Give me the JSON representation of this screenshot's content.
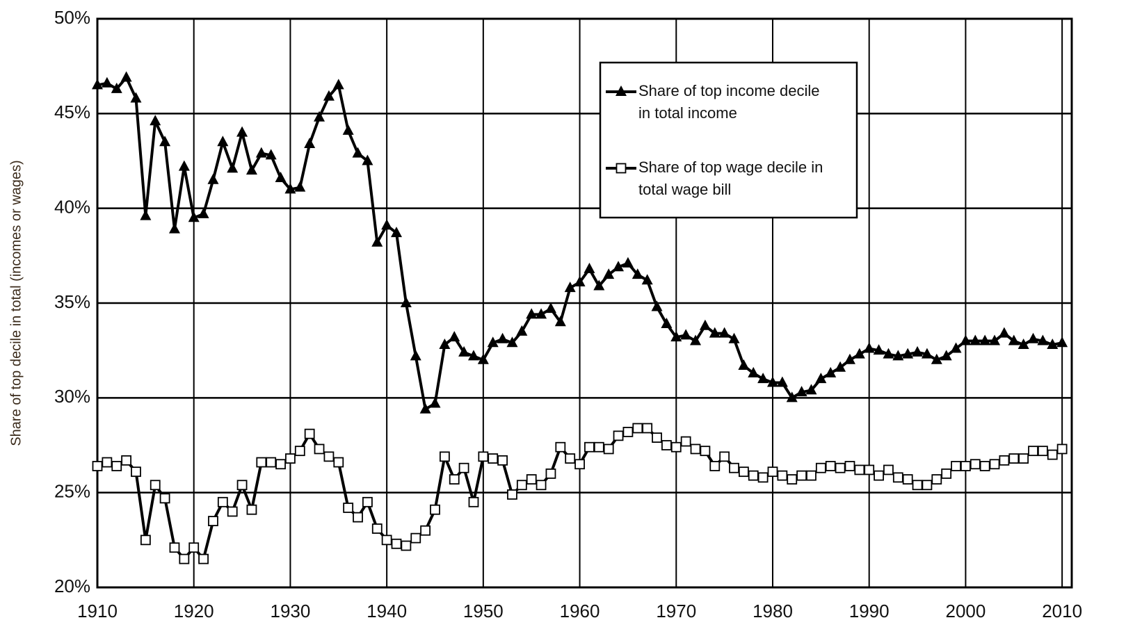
{
  "chart_data": {
    "type": "line",
    "y_label": "Share of top decile in total (incomes or wages)",
    "x": [
      1910,
      1911,
      1912,
      1913,
      1914,
      1915,
      1916,
      1917,
      1918,
      1919,
      1920,
      1921,
      1922,
      1923,
      1924,
      1925,
      1926,
      1927,
      1928,
      1929,
      1930,
      1931,
      1932,
      1933,
      1934,
      1935,
      1936,
      1937,
      1938,
      1939,
      1940,
      1941,
      1942,
      1943,
      1944,
      1945,
      1946,
      1947,
      1948,
      1949,
      1950,
      1951,
      1952,
      1953,
      1954,
      1955,
      1956,
      1957,
      1958,
      1959,
      1960,
      1961,
      1962,
      1963,
      1964,
      1965,
      1966,
      1967,
      1968,
      1969,
      1970,
      1971,
      1972,
      1973,
      1974,
      1975,
      1976,
      1977,
      1978,
      1979,
      1980,
      1981,
      1982,
      1983,
      1984,
      1985,
      1986,
      1987,
      1988,
      1989,
      1990,
      1991,
      1992,
      1993,
      1994,
      1995,
      1996,
      1997,
      1998,
      1999,
      2000,
      2001,
      2002,
      2003,
      2004,
      2005,
      2006,
      2007,
      2008,
      2009,
      2010
    ],
    "series": [
      {
        "name": "Share of top income decile in total income",
        "color": "#000000",
        "marker": "triangle",
        "values": [
          46.5,
          46.6,
          46.3,
          46.9,
          45.8,
          39.6,
          44.6,
          43.5,
          38.9,
          42.2,
          39.5,
          39.7,
          41.5,
          43.5,
          42.1,
          44.0,
          42.0,
          42.9,
          42.8,
          41.6,
          41.0,
          41.1,
          43.4,
          44.8,
          45.9,
          46.5,
          44.1,
          42.9,
          42.5,
          38.2,
          39.1,
          38.7,
          35.0,
          32.2,
          29.4,
          29.7,
          32.8,
          33.2,
          32.4,
          32.2,
          32.0,
          32.9,
          33.1,
          32.9,
          33.5,
          34.4,
          34.4,
          34.7,
          34.0,
          35.8,
          36.1,
          36.8,
          35.9,
          36.5,
          36.9,
          37.1,
          36.5,
          36.2,
          34.8,
          33.9,
          33.2,
          33.3,
          33.0,
          33.8,
          33.4,
          33.4,
          33.1,
          31.7,
          31.3,
          31.0,
          30.8,
          30.8,
          30.0,
          30.3,
          30.4,
          31.0,
          31.3,
          31.6,
          32.0,
          32.3,
          32.6,
          32.5,
          32.3,
          32.2,
          32.3,
          32.4,
          32.3,
          32.0,
          32.2,
          32.6,
          33.0,
          33.0,
          33.0,
          33.0,
          33.4,
          33.0,
          32.8,
          33.1,
          33.0,
          32.8,
          32.9
        ]
      },
      {
        "name": "Share of top wage decile in total wage bill",
        "color": "#000000",
        "marker": "square",
        "values": [
          26.4,
          26.6,
          26.4,
          26.7,
          26.1,
          22.5,
          25.4,
          24.7,
          22.1,
          21.5,
          22.1,
          21.5,
          23.5,
          24.5,
          24.0,
          25.4,
          24.1,
          26.6,
          26.6,
          26.5,
          26.8,
          27.2,
          28.1,
          27.3,
          26.9,
          26.6,
          24.2,
          23.7,
          24.5,
          23.1,
          22.5,
          22.3,
          22.2,
          22.6,
          23.0,
          24.1,
          26.9,
          25.7,
          26.3,
          24.5,
          26.9,
          26.8,
          26.7,
          24.9,
          25.4,
          25.7,
          25.4,
          26.0,
          27.4,
          26.8,
          26.5,
          27.4,
          27.4,
          27.3,
          28.0,
          28.2,
          28.4,
          28.4,
          27.9,
          27.5,
          27.4,
          27.7,
          27.3,
          27.2,
          26.4,
          26.9,
          26.3,
          26.1,
          25.9,
          25.8,
          26.1,
          25.9,
          25.7,
          25.9,
          25.9,
          26.3,
          26.4,
          26.3,
          26.4,
          26.2,
          26.2,
          25.9,
          26.2,
          25.8,
          25.7,
          25.4,
          25.4,
          25.7,
          26.0,
          26.4,
          26.4,
          26.5,
          26.4,
          26.5,
          26.7,
          26.8,
          26.8,
          27.2,
          27.2,
          27.0,
          27.3
        ]
      }
    ],
    "xlim": [
      1910,
      2011
    ],
    "xticks": [
      1910,
      1920,
      1930,
      1940,
      1950,
      1960,
      1970,
      1980,
      1990,
      2000,
      2010
    ],
    "ylim": [
      20,
      50
    ],
    "yticks": [
      {
        "value": 20,
        "label": "20%"
      },
      {
        "value": 25,
        "label": "25%"
      },
      {
        "value": 30,
        "label": "30%"
      },
      {
        "value": 35,
        "label": "35%"
      },
      {
        "value": 40,
        "label": "40%"
      },
      {
        "value": 45,
        "label": "45%"
      },
      {
        "value": 50,
        "label": "50%"
      }
    ],
    "grid": true,
    "legend": "upper center"
  }
}
